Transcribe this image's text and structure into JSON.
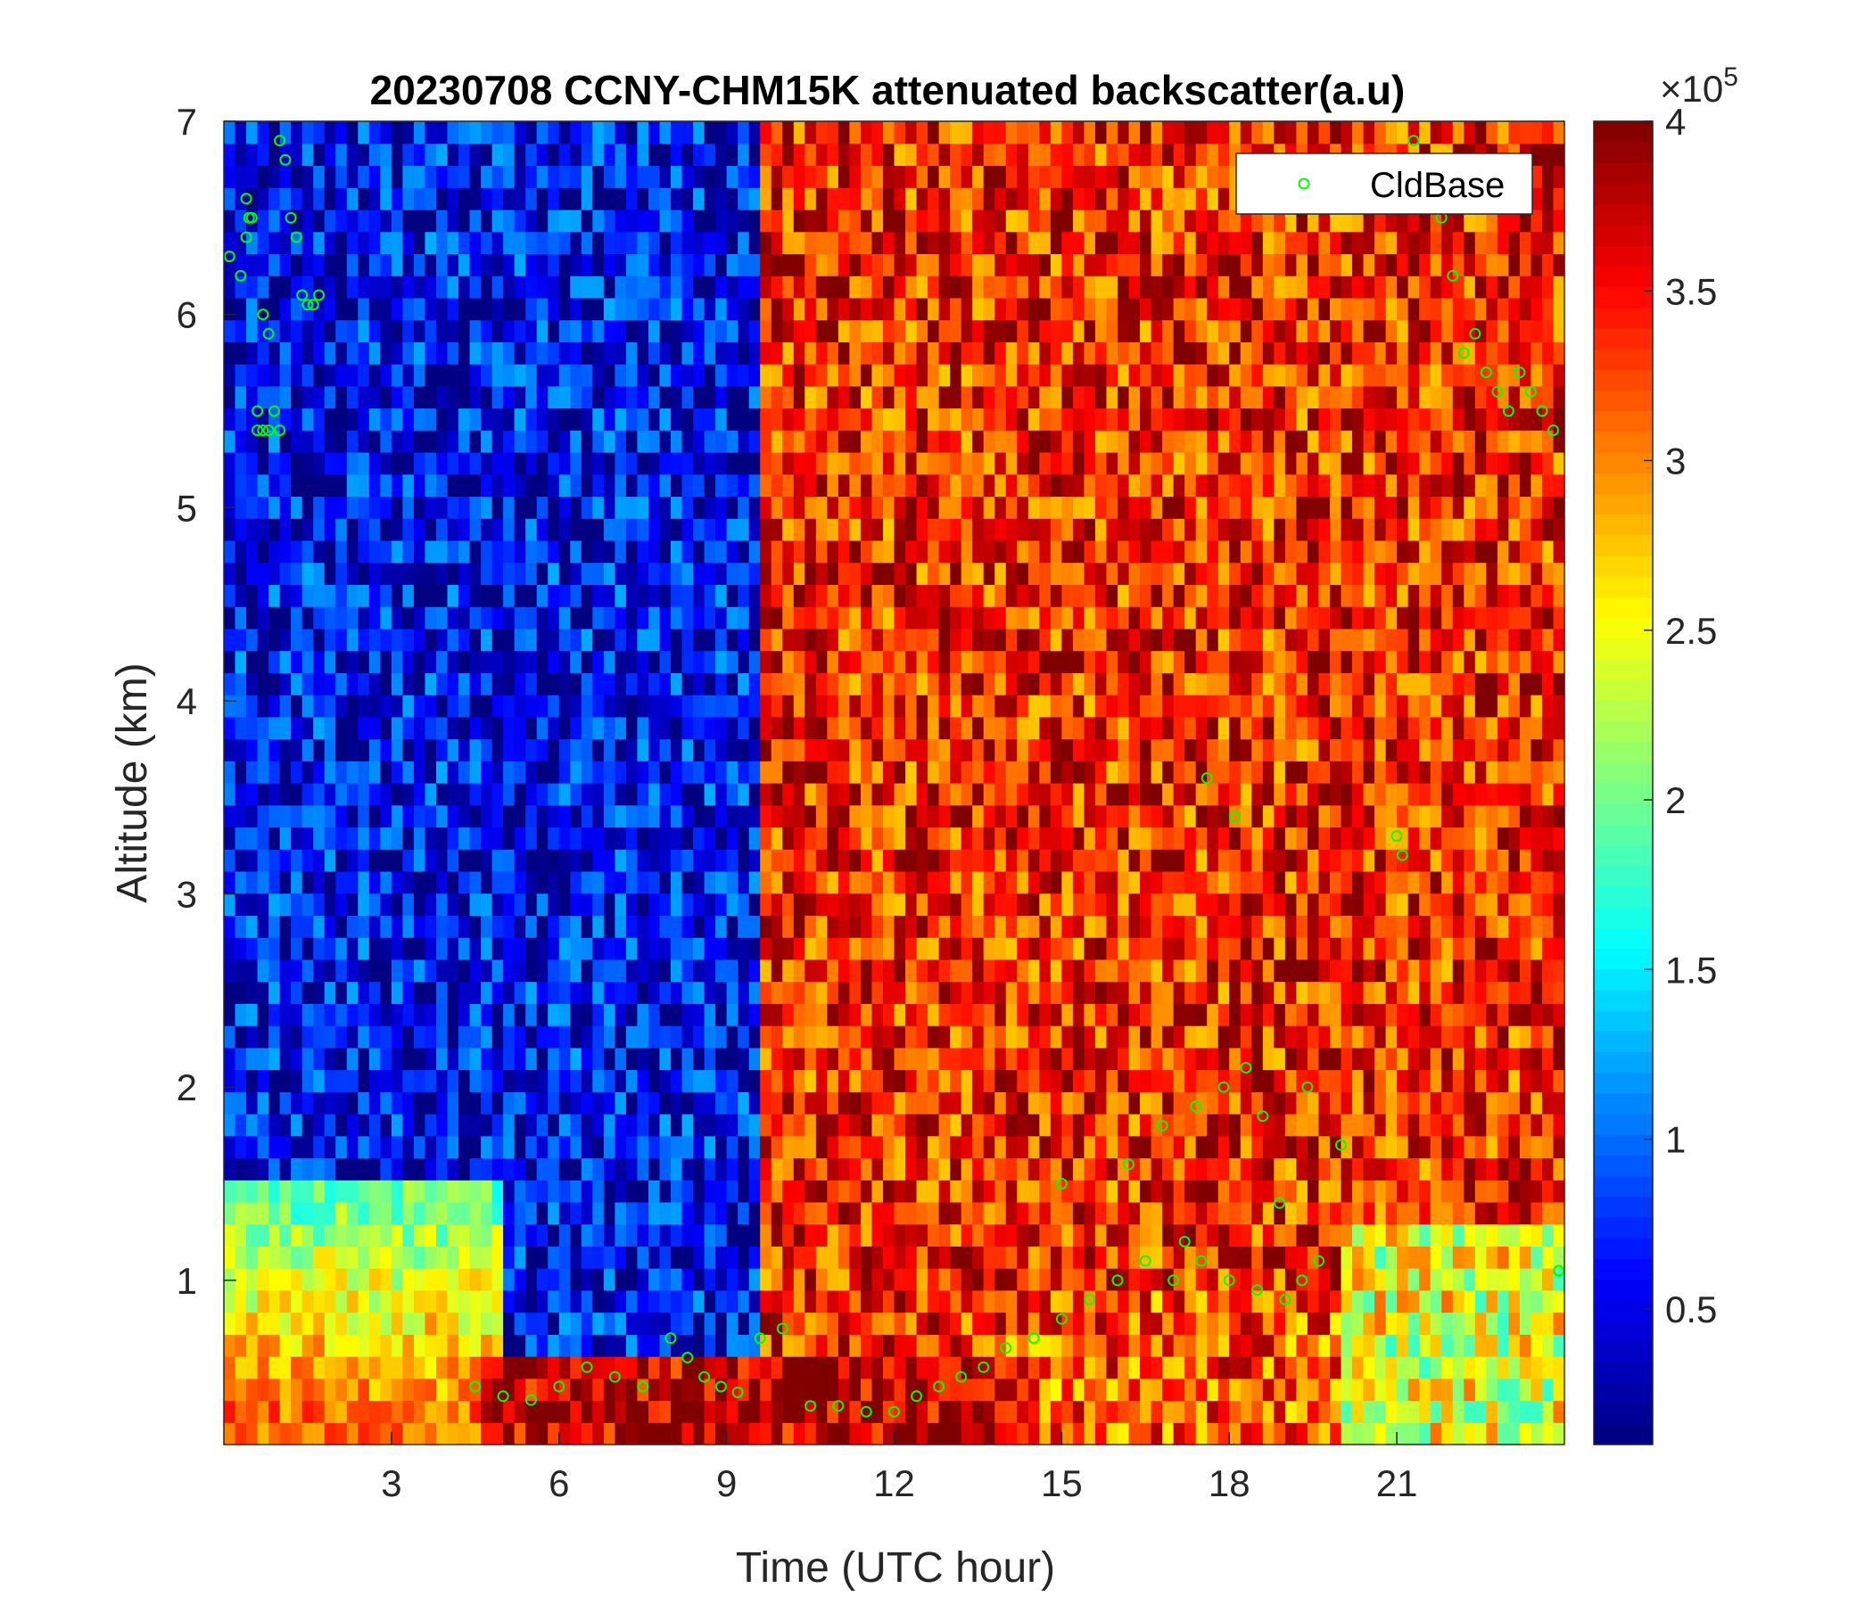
{
  "chart_data": {
    "type": "heatmap",
    "title": "20230708 CCNY-CHM15K attenuated backscatter(a.u)",
    "xlabel": "Time (UTC hour)",
    "ylabel": "Altitude (km)",
    "xlim": [
      0,
      24
    ],
    "ylim": [
      0.15,
      7
    ],
    "x_ticks": [
      3,
      6,
      9,
      12,
      15,
      18,
      21
    ],
    "x_tick_labels": [
      "3",
      "6",
      "9",
      "12",
      "15",
      "18",
      "21"
    ],
    "y_ticks": [
      1,
      2,
      3,
      4,
      5,
      6,
      7
    ],
    "y_tick_labels": [
      "1",
      "2",
      "3",
      "4",
      "5",
      "6",
      "7"
    ],
    "colorbar": {
      "colormap": "jet",
      "clim": [
        10000,
        400000
      ],
      "ticks": [
        50000,
        100000,
        150000,
        200000,
        250000,
        300000,
        350000,
        400000
      ],
      "tick_labels": [
        "0.5",
        "1",
        "1.5",
        "2",
        "2.5",
        "3",
        "3.5",
        "4"
      ],
      "exponent_label": "×10",
      "exponent_power": "5"
    },
    "legend": {
      "position": "top-right",
      "entries": [
        {
          "label": "CldBase",
          "marker": "open-circle",
          "color": "#00ff00"
        }
      ]
    },
    "layers": [
      {
        "name": "background-low",
        "t_start": 0,
        "t_end": 9.5,
        "level": 0.12
      },
      {
        "name": "background-high",
        "t_start": 9.5,
        "t_end": 24,
        "level": 0.85
      },
      {
        "name": "residual-layer",
        "t_start": 0,
        "t_end": 5,
        "alt_bottom": 0.15,
        "alt_top": 1.5,
        "level": 0.45
      }
    ],
    "series": [
      {
        "name": "CldBase",
        "x": [
          0.1,
          0.3,
          0.4,
          0.4,
          0.45,
          0.5,
          0.6,
          0.6,
          0.7,
          0.8,
          1.0,
          1.1,
          1.2,
          1.3,
          1.4,
          1.5,
          1.6,
          1.7,
          0.7,
          0.8,
          0.9,
          1.0,
          4.5,
          5.0,
          5.5,
          6.0,
          6.5,
          7.0,
          7.5,
          8.0,
          8.3,
          8.6,
          8.9,
          9.2,
          9.6,
          10.0,
          10.5,
          11.0,
          11.5,
          12.0,
          12.4,
          12.8,
          13.2,
          13.6,
          14.0,
          14.5,
          15.0,
          15.5,
          16.0,
          16.5,
          17.0,
          17.5,
          18.0,
          18.5,
          19.0,
          19.3,
          19.6,
          17.2,
          17.4,
          17.9,
          18.3,
          18.6,
          18.9,
          19.4,
          20.0,
          15.0,
          16.2,
          16.8,
          17.6,
          18.1,
          21.0,
          21.1,
          21.3,
          21.8,
          22.0,
          22.2,
          22.4,
          22.6,
          22.8,
          23.0,
          23.2,
          23.4,
          23.6,
          23.8,
          23.9
        ],
        "y": [
          6.3,
          6.2,
          6.6,
          6.4,
          6.5,
          6.5,
          5.4,
          5.5,
          5.4,
          5.4,
          6.9,
          6.8,
          6.5,
          6.4,
          6.1,
          6.05,
          6.05,
          6.1,
          6.0,
          5.9,
          5.5,
          5.4,
          0.45,
          0.4,
          0.38,
          0.45,
          0.55,
          0.5,
          0.45,
          0.7,
          0.6,
          0.5,
          0.45,
          0.42,
          0.7,
          0.75,
          0.35,
          0.35,
          0.32,
          0.32,
          0.4,
          0.45,
          0.5,
          0.55,
          0.65,
          0.7,
          0.8,
          0.9,
          1.0,
          1.1,
          1.0,
          1.1,
          1.0,
          0.95,
          0.9,
          1.0,
          1.1,
          1.2,
          1.9,
          2.0,
          2.1,
          1.85,
          1.4,
          2.0,
          1.7,
          1.5,
          1.6,
          1.8,
          3.6,
          3.4,
          3.3,
          3.2,
          6.9,
          6.5,
          6.2,
          5.8,
          5.9,
          5.7,
          5.6,
          5.5,
          5.7,
          5.6,
          5.5,
          5.4,
          1.05
        ]
      }
    ]
  }
}
